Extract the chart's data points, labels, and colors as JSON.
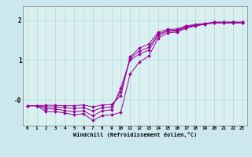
{
  "background_color": "#cce8ee",
  "plot_bg_color": "#daf0f0",
  "line_color": "#990099",
  "xlabel": "Windchill (Refroidissement éolien,°C)",
  "ylim": [
    -0.65,
    2.35
  ],
  "xlim": [
    -0.5,
    23.5
  ],
  "ytick_vals": [
    0.0,
    1.0,
    2.0
  ],
  "ytick_labels": [
    "-0",
    "1",
    "2"
  ],
  "xticks": [
    0,
    1,
    2,
    3,
    4,
    5,
    6,
    7,
    8,
    9,
    10,
    11,
    12,
    13,
    14,
    15,
    16,
    17,
    18,
    19,
    20,
    21,
    22,
    23
  ],
  "series": [
    {
      "x": [
        0,
        1,
        2,
        3,
        4,
        5,
        6,
        7,
        8,
        9,
        10,
        11,
        12,
        13,
        14,
        15,
        16,
        17,
        18,
        19,
        20,
        21,
        22,
        23
      ],
      "y": [
        -0.15,
        -0.15,
        -0.3,
        -0.3,
        -0.33,
        -0.38,
        -0.35,
        -0.52,
        -0.4,
        -0.38,
        -0.32,
        0.65,
        0.95,
        1.1,
        1.55,
        1.68,
        1.7,
        1.8,
        1.85,
        1.9,
        1.95,
        1.95,
        1.95,
        1.95
      ]
    },
    {
      "x": [
        0,
        1,
        2,
        3,
        4,
        5,
        6,
        7,
        8,
        9,
        10,
        11,
        12,
        13,
        14,
        15,
        16,
        17,
        18,
        19,
        20,
        21,
        22,
        23
      ],
      "y": [
        -0.15,
        -0.15,
        -0.23,
        -0.23,
        -0.27,
        -0.3,
        -0.28,
        -0.4,
        -0.28,
        -0.25,
        0.3,
        1.0,
        1.15,
        1.25,
        1.62,
        1.72,
        1.73,
        1.82,
        1.87,
        1.9,
        1.93,
        1.93,
        1.93,
        1.93
      ]
    },
    {
      "x": [
        0,
        1,
        2,
        3,
        4,
        5,
        6,
        7,
        8,
        9,
        10,
        11,
        12,
        13,
        14,
        15,
        16,
        17,
        18,
        19,
        20,
        21,
        22,
        23
      ],
      "y": [
        -0.15,
        -0.15,
        -0.18,
        -0.18,
        -0.2,
        -0.22,
        -0.2,
        -0.28,
        -0.2,
        -0.18,
        0.2,
        1.05,
        1.22,
        1.32,
        1.65,
        1.74,
        1.75,
        1.84,
        1.88,
        1.91,
        1.94,
        1.94,
        1.94,
        1.94
      ]
    },
    {
      "x": [
        0,
        1,
        2,
        3,
        4,
        5,
        6,
        7,
        8,
        9,
        10,
        11,
        12,
        13,
        14,
        15,
        16,
        17,
        18,
        19,
        20,
        21,
        22,
        23
      ],
      "y": [
        -0.15,
        -0.15,
        -0.14,
        -0.14,
        -0.15,
        -0.15,
        -0.13,
        -0.18,
        -0.13,
        -0.12,
        0.1,
        1.08,
        1.3,
        1.4,
        1.7,
        1.77,
        1.78,
        1.86,
        1.89,
        1.92,
        1.95,
        1.95,
        1.95,
        1.95
      ]
    }
  ]
}
